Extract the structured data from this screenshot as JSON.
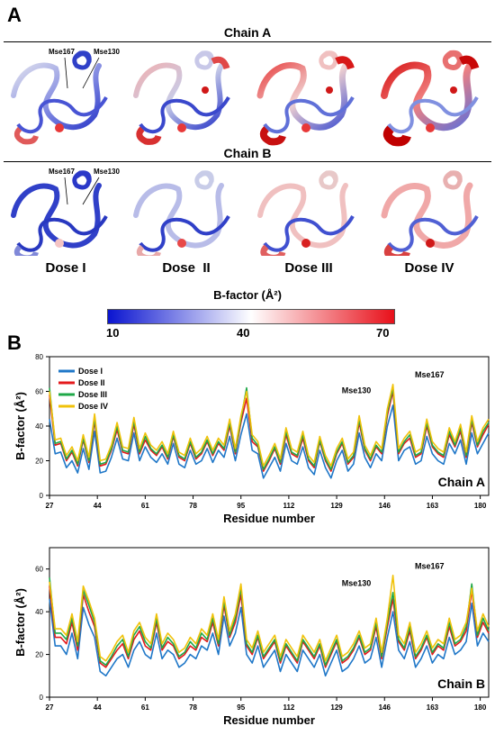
{
  "panel_a": {
    "letter": "A",
    "chain_a_title": "Chain A",
    "chain_b_title": "Chain B",
    "callouts": [
      "Mse167",
      "Mse130"
    ],
    "doses": [
      "Dose I",
      "Dose  II",
      "Dose III",
      "Dose IV"
    ],
    "colorbar": {
      "title": "B-factor (Å²)",
      "ticks": [
        "10",
        "40",
        "70"
      ],
      "colors": [
        "#0a14d0",
        "#ffffff",
        "#e8101a"
      ]
    }
  },
  "panel_b": {
    "letter": "B"
  },
  "chart_data": [
    {
      "type": "line",
      "name": "Chain A",
      "corner_label": "Chain A",
      "xlabel": "Residue number",
      "ylabel": "B-factor (Å²)",
      "ylim": [
        0,
        80
      ],
      "yticks": [
        0,
        20,
        40,
        60,
        80
      ],
      "xlim": [
        27,
        183
      ],
      "xticks": [
        27,
        44,
        61,
        78,
        95,
        112,
        129,
        146,
        163,
        180
      ],
      "annotations": [
        {
          "text": "Mse130",
          "x": 136,
          "y": 59
        },
        {
          "text": "Mse167",
          "x": 162,
          "y": 68
        }
      ],
      "legend": "top-left",
      "x": [
        27,
        29,
        31,
        33,
        35,
        37,
        39,
        41,
        43,
        45,
        47,
        49,
        51,
        53,
        55,
        57,
        59,
        61,
        63,
        65,
        67,
        69,
        71,
        73,
        75,
        77,
        79,
        81,
        83,
        85,
        87,
        89,
        91,
        93,
        95,
        97,
        99,
        101,
        103,
        105,
        107,
        109,
        111,
        113,
        115,
        117,
        119,
        121,
        123,
        125,
        127,
        129,
        131,
        133,
        135,
        137,
        139,
        141,
        143,
        145,
        147,
        149,
        151,
        153,
        155,
        157,
        159,
        161,
        163,
        165,
        167,
        169,
        171,
        173,
        175,
        177,
        179,
        181,
        183
      ],
      "series": [
        {
          "name": "Dose I",
          "color": "#1f77c8",
          "values": [
            44,
            24,
            25,
            16,
            20,
            13,
            27,
            15,
            37,
            13,
            14,
            22,
            33,
            21,
            20,
            36,
            20,
            28,
            22,
            19,
            24,
            18,
            30,
            18,
            16,
            26,
            18,
            20,
            27,
            19,
            26,
            22,
            34,
            20,
            35,
            47,
            26,
            24,
            10,
            16,
            22,
            14,
            30,
            20,
            18,
            28,
            16,
            12,
            26,
            16,
            10,
            20,
            26,
            14,
            18,
            36,
            22,
            16,
            24,
            20,
            40,
            52,
            20,
            26,
            28,
            18,
            20,
            34,
            24,
            20,
            18,
            30,
            24,
            32,
            18,
            36,
            24,
            30,
            36
          ]
        },
        {
          "name": "Dose II",
          "color": "#e41a1c",
          "values": [
            58,
            29,
            30,
            20,
            25,
            17,
            32,
            19,
            43,
            17,
            18,
            26,
            38,
            25,
            24,
            41,
            24,
            32,
            26,
            23,
            28,
            21,
            34,
            22,
            20,
            30,
            21,
            24,
            31,
            23,
            30,
            26,
            40,
            24,
            42,
            56,
            31,
            28,
            14,
            20,
            27,
            18,
            35,
            24,
            22,
            33,
            20,
            16,
            31,
            20,
            14,
            24,
            30,
            18,
            22,
            42,
            26,
            20,
            28,
            24,
            46,
            60,
            24,
            30,
            33,
            22,
            24,
            40,
            28,
            24,
            22,
            35,
            28,
            37,
            22,
            42,
            28,
            35,
            41
          ]
        },
        {
          "name": "Dose III",
          "color": "#1fa848",
          "values": [
            62,
            30,
            31,
            21,
            26,
            18,
            33,
            20,
            45,
            18,
            19,
            27,
            40,
            26,
            25,
            43,
            25,
            34,
            27,
            24,
            29,
            22,
            35,
            23,
            21,
            31,
            22,
            25,
            32,
            24,
            31,
            27,
            42,
            25,
            44,
            62,
            33,
            29,
            15,
            21,
            28,
            19,
            37,
            25,
            23,
            35,
            21,
            17,
            32,
            21,
            15,
            25,
            31,
            19,
            23,
            44,
            27,
            21,
            29,
            25,
            48,
            62,
            25,
            31,
            35,
            23,
            25,
            42,
            29,
            25,
            23,
            37,
            29,
            39,
            23,
            44,
            29,
            37,
            42
          ]
        },
        {
          "name": "Dose IV",
          "color": "#f0c20a",
          "values": [
            60,
            32,
            33,
            23,
            28,
            20,
            35,
            22,
            47,
            20,
            21,
            29,
            42,
            28,
            27,
            45,
            27,
            36,
            29,
            26,
            31,
            24,
            37,
            25,
            23,
            33,
            24,
            27,
            34,
            26,
            33,
            29,
            44,
            27,
            46,
            60,
            35,
            31,
            17,
            23,
            30,
            21,
            39,
            27,
            25,
            37,
            23,
            19,
            34,
            23,
            17,
            27,
            33,
            21,
            25,
            46,
            29,
            23,
            31,
            27,
            50,
            64,
            27,
            33,
            37,
            25,
            27,
            44,
            31,
            27,
            25,
            39,
            31,
            41,
            25,
            46,
            31,
            39,
            44
          ]
        }
      ]
    },
    {
      "type": "line",
      "name": "Chain B",
      "corner_label": "Chain B",
      "xlabel": "Residue number",
      "ylabel": "B-factor (Å²)",
      "ylim": [
        0,
        70
      ],
      "yticks": [
        0,
        20,
        40,
        60
      ],
      "xlim": [
        27,
        183
      ],
      "xticks": [
        27,
        44,
        61,
        78,
        95,
        112,
        129,
        146,
        163,
        180
      ],
      "annotations": [
        {
          "text": "Mse130",
          "x": 136,
          "y": 52
        },
        {
          "text": "Mse167",
          "x": 162,
          "y": 60
        }
      ],
      "x": [
        27,
        29,
        31,
        33,
        35,
        37,
        39,
        41,
        43,
        45,
        47,
        49,
        51,
        53,
        55,
        57,
        59,
        61,
        63,
        65,
        67,
        69,
        71,
        73,
        75,
        77,
        79,
        81,
        83,
        85,
        87,
        89,
        91,
        93,
        95,
        97,
        99,
        101,
        103,
        105,
        107,
        109,
        111,
        113,
        115,
        117,
        119,
        121,
        123,
        125,
        127,
        129,
        131,
        133,
        135,
        137,
        139,
        141,
        143,
        145,
        147,
        149,
        151,
        153,
        155,
        157,
        159,
        161,
        163,
        165,
        167,
        169,
        171,
        173,
        175,
        177,
        179,
        181,
        183
      ],
      "series": [
        {
          "name": "Dose I",
          "color": "#1f77c8",
          "values": [
            46,
            24,
            24,
            20,
            30,
            18,
            42,
            34,
            28,
            12,
            10,
            14,
            18,
            20,
            14,
            22,
            26,
            20,
            18,
            30,
            18,
            22,
            20,
            14,
            16,
            20,
            18,
            24,
            22,
            30,
            20,
            38,
            24,
            30,
            42,
            20,
            16,
            24,
            14,
            18,
            22,
            12,
            20,
            16,
            12,
            22,
            18,
            14,
            20,
            10,
            16,
            22,
            12,
            14,
            18,
            24,
            16,
            18,
            28,
            14,
            28,
            40,
            22,
            18,
            26,
            14,
            18,
            24,
            16,
            20,
            18,
            28,
            20,
            22,
            26,
            44,
            24,
            30,
            26
          ]
        },
        {
          "name": "Dose II",
          "color": "#e41a1c",
          "values": [
            52,
            28,
            28,
            25,
            35,
            22,
            48,
            40,
            33,
            16,
            14,
            18,
            22,
            25,
            18,
            27,
            31,
            24,
            22,
            35,
            22,
            26,
            24,
            18,
            20,
            24,
            22,
            28,
            26,
            35,
            24,
            43,
            28,
            35,
            48,
            24,
            20,
            28,
            18,
            22,
            26,
            16,
            24,
            20,
            16,
            26,
            22,
            18,
            24,
            14,
            20,
            26,
            16,
            18,
            22,
            28,
            20,
            22,
            33,
            18,
            33,
            46,
            26,
            22,
            31,
            18,
            22,
            28,
            20,
            24,
            22,
            33,
            24,
            26,
            31,
            50,
            28,
            35,
            30
          ]
        },
        {
          "name": "Dose III",
          "color": "#1fa848",
          "values": [
            56,
            30,
            30,
            27,
            37,
            24,
            50,
            43,
            35,
            17,
            15,
            19,
            24,
            27,
            19,
            29,
            33,
            26,
            23,
            37,
            23,
            28,
            25,
            19,
            21,
            26,
            23,
            30,
            27,
            37,
            25,
            45,
            29,
            37,
            51,
            25,
            21,
            29,
            19,
            23,
            27,
            17,
            25,
            21,
            17,
            27,
            23,
            19,
            25,
            15,
            21,
            27,
            17,
            19,
            23,
            29,
            21,
            23,
            35,
            19,
            35,
            49,
            27,
            23,
            33,
            19,
            23,
            29,
            21,
            25,
            23,
            35,
            25,
            27,
            33,
            53,
            29,
            37,
            31
          ]
        },
        {
          "name": "Dose IV",
          "color": "#f0c20a",
          "values": [
            54,
            32,
            32,
            29,
            39,
            26,
            52,
            45,
            37,
            19,
            17,
            21,
            26,
            29,
            21,
            31,
            35,
            28,
            25,
            39,
            25,
            30,
            27,
            21,
            23,
            28,
            25,
            32,
            29,
            39,
            27,
            47,
            31,
            39,
            53,
            27,
            23,
            31,
            21,
            25,
            29,
            19,
            27,
            23,
            19,
            29,
            25,
            21,
            27,
            17,
            23,
            29,
            19,
            21,
            25,
            31,
            23,
            25,
            37,
            21,
            37,
            57,
            29,
            25,
            35,
            21,
            25,
            31,
            23,
            27,
            25,
            37,
            27,
            29,
            35,
            51,
            31,
            39,
            33
          ]
        }
      ]
    }
  ]
}
